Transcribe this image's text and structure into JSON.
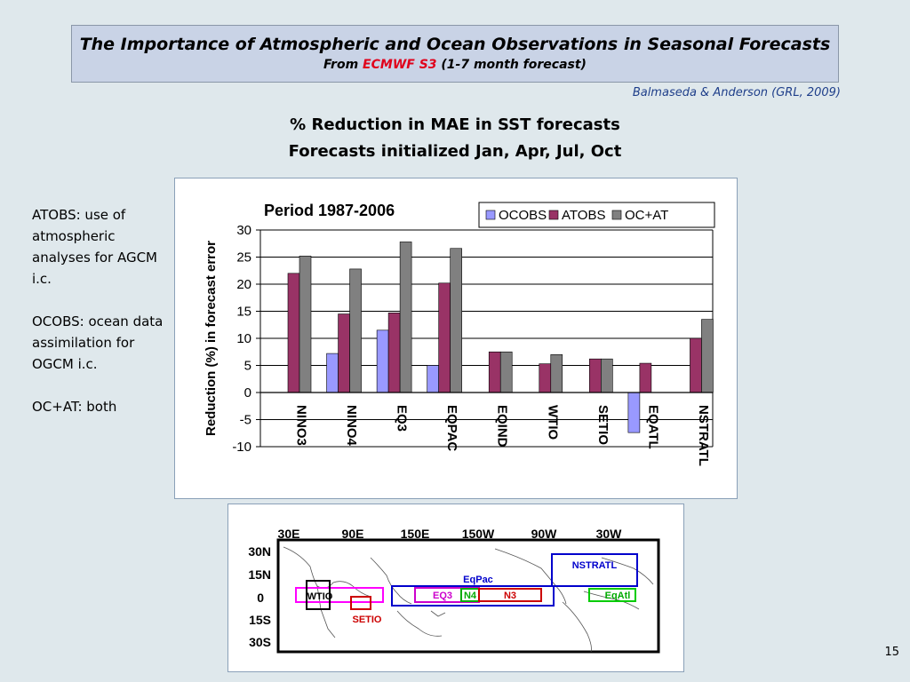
{
  "slide": {
    "title": "The Importance of Atmospheric and Ocean Observations in Seasonal Forecasts",
    "subtitle_prefix": "From ",
    "subtitle_highlight": "ECMWF S3",
    "subtitle_suffix": " (1-7 month forecast)",
    "citation": "Balmaseda & Anderson (GRL, 2009)",
    "heading_line1": "% Reduction in MAE in SST forecasts",
    "heading_line2": "Forecasts initialized Jan, Apr, Jul, Oct",
    "notes": [
      "ATOBS: use of atmospheric analyses for AGCM i.c.",
      "OCOBS: ocean data assimilation for OGCM i.c.",
      "OC+AT: both"
    ],
    "page_number": "15"
  },
  "chart_data": {
    "type": "bar",
    "title": "Period 1987-2006",
    "ylabel": "Reduction (%) in forecast error",
    "ylim": [
      -10,
      30
    ],
    "yticks": [
      30,
      25,
      20,
      15,
      10,
      5,
      0,
      -5,
      -10
    ],
    "grid": true,
    "legend_position": "top-right",
    "categories": [
      "NINO3",
      "NINO4",
      "EQ3",
      "EQPAC",
      "EQIND",
      "WTIO",
      "SETIO",
      "EQATL",
      "NSTRATL"
    ],
    "series": [
      {
        "name": "OCOBS",
        "color": "#9999ff",
        "values": [
          null,
          7.2,
          11.5,
          5.0,
          null,
          null,
          null,
          -7.4,
          null
        ]
      },
      {
        "name": "ATOBS",
        "color": "#993366",
        "values": [
          22.0,
          14.5,
          14.7,
          20.2,
          7.5,
          5.3,
          6.2,
          5.4,
          10.0
        ]
      },
      {
        "name": "OC+AT",
        "color": "#808080",
        "values": [
          25.2,
          22.8,
          27.8,
          26.6,
          7.5,
          7.0,
          6.2,
          null,
          13.5
        ]
      }
    ]
  },
  "map": {
    "lon_labels": [
      "30E",
      "90E",
      "150E",
      "150W",
      "90W",
      "30W"
    ],
    "lat_labels": [
      "30N",
      "15N",
      "0",
      "15S",
      "30S"
    ],
    "regions": {
      "nstratl": "NSTRATL",
      "eqpac": "EqPac",
      "wtio": "WTIO",
      "eq3": "EQ3",
      "n4": "N4",
      "n3": "N3",
      "eqatl": "EqAtl",
      "setio": "SETIO"
    },
    "colors": {
      "nstratl": "#0000cc",
      "eqpac": "#0000cc",
      "wtio": "#000000",
      "eq3": "#cc00cc",
      "n4": "#00aa00",
      "n3": "#cc0000",
      "eqatl": "#00cc00",
      "setio": "#cc0000",
      "indian_box": "#ff00ff"
    }
  }
}
